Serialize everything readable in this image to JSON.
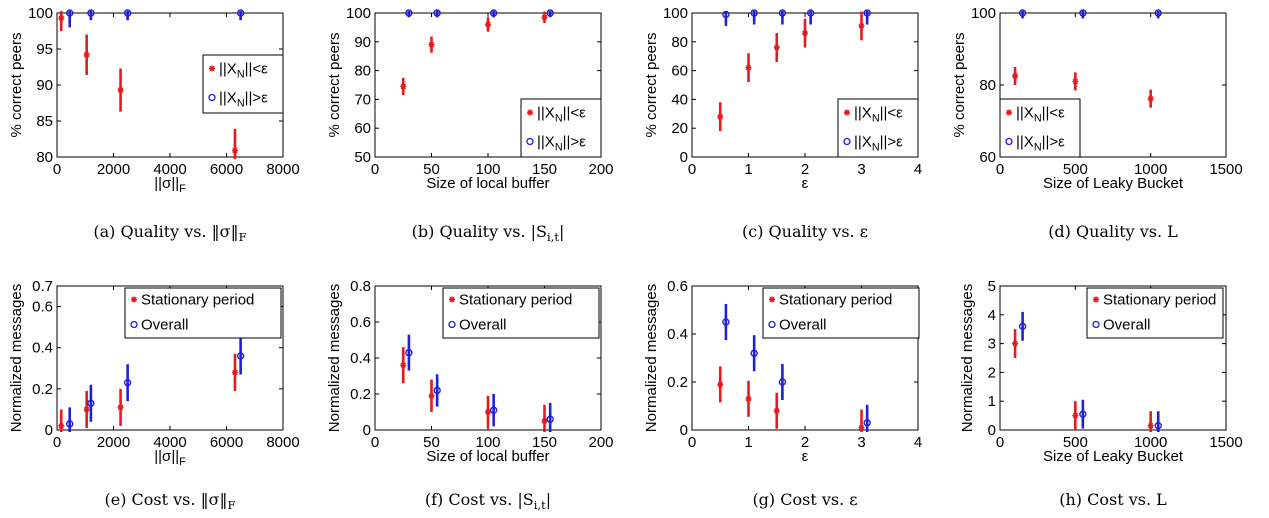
{
  "colors": {
    "series1": "#e41a1c",
    "series2": "#1f1fdf",
    "axis": "#000000"
  },
  "chart_data": [
    {
      "type": "scatter",
      "caption": "(a) Quality vs. ‖σ‖_F",
      "xlabel": "||σ||_F",
      "ylabel": "% correct peers",
      "xlim": [
        0,
        8000
      ],
      "ylim": [
        80,
        100
      ],
      "xticks": [
        0,
        2000,
        4000,
        6000,
        8000
      ],
      "yticks": [
        80,
        85,
        90,
        95,
        100
      ],
      "legend_position": "right",
      "series": [
        {
          "name": "||X_N||<ε",
          "marker": "star",
          "color": "red",
          "x": [
            150,
            1050,
            2250,
            6300
          ],
          "y": [
            99.3,
            94.2,
            89.3,
            80.9
          ],
          "err": [
            1.8,
            2.8,
            3.0,
            3.0
          ]
        },
        {
          "name": "||X_N||>ε",
          "marker": "circle",
          "color": "blue",
          "x": [
            450,
            1200,
            2500,
            6500
          ],
          "y": [
            100,
            100,
            100,
            100
          ],
          "err": [
            2.0,
            1.0,
            1.0,
            1.0
          ]
        }
      ]
    },
    {
      "type": "scatter",
      "caption": "(b) Quality vs. |S_i,t|",
      "xlabel": "Size of local buffer",
      "ylabel": "% correct peers",
      "xlim": [
        0,
        200
      ],
      "ylim": [
        50,
        100
      ],
      "xticks": [
        0,
        50,
        100,
        150,
        200
      ],
      "yticks": [
        50,
        60,
        70,
        80,
        90,
        100
      ],
      "legend_position": "bottom-right",
      "series": [
        {
          "name": "||X_N||<ε",
          "marker": "star",
          "color": "red",
          "x": [
            25,
            50,
            100,
            150
          ],
          "y": [
            74.5,
            89,
            96,
            98.5
          ],
          "err": [
            3.0,
            2.8,
            2.5,
            2.0
          ]
        },
        {
          "name": "||X_N||>ε",
          "marker": "circle",
          "color": "blue",
          "x": [
            30,
            55,
            105,
            155
          ],
          "y": [
            100,
            100,
            100,
            100
          ],
          "err": [
            1.5,
            1.5,
            1.5,
            1.5
          ]
        }
      ]
    },
    {
      "type": "scatter",
      "caption": "(c) Quality vs. ε",
      "xlabel": "ε",
      "ylabel": "% correct peers",
      "xlim": [
        0,
        4
      ],
      "ylim": [
        0,
        100
      ],
      "xticks": [
        0,
        1,
        2,
        3,
        4
      ],
      "yticks": [
        0,
        20,
        40,
        60,
        80,
        100
      ],
      "legend_position": "bottom-right",
      "series": [
        {
          "name": "||X_N||<ε",
          "marker": "star",
          "color": "red",
          "x": [
            0.5,
            1.0,
            1.5,
            2.0,
            3.0
          ],
          "y": [
            28,
            62,
            76,
            86,
            91
          ],
          "err": [
            10,
            10,
            10,
            10,
            10
          ]
        },
        {
          "name": "||X_N||>ε",
          "marker": "circle",
          "color": "blue",
          "x": [
            0.6,
            1.1,
            1.6,
            2.1,
            3.1
          ],
          "y": [
            99,
            100,
            100,
            100,
            100
          ],
          "err": [
            8,
            8,
            8,
            8,
            8
          ]
        }
      ]
    },
    {
      "type": "scatter",
      "caption": "(d) Quality vs. L",
      "xlabel": "Size of Leaky Bucket",
      "ylabel": "% correct peers",
      "xlim": [
        0,
        1500
      ],
      "ylim": [
        60,
        100
      ],
      "xticks": [
        0,
        500,
        1000,
        1500
      ],
      "yticks": [
        60,
        80,
        100
      ],
      "legend_position": "bottom-left",
      "series": [
        {
          "name": "||X_N||<ε",
          "marker": "star",
          "color": "red",
          "x": [
            100,
            500,
            1000
          ],
          "y": [
            82.5,
            81,
            76.2
          ],
          "err": [
            2.5,
            2.5,
            2.5
          ]
        },
        {
          "name": "||X_N||>ε",
          "marker": "circle",
          "color": "blue",
          "x": [
            150,
            550,
            1050
          ],
          "y": [
            100,
            100,
            100
          ],
          "err": [
            1.5,
            1.5,
            1.5
          ]
        }
      ]
    },
    {
      "type": "scatter",
      "caption": "(e) Cost vs. ‖σ‖_F",
      "xlabel": "||σ||_F",
      "ylabel": "Normalized messages",
      "xlim": [
        0,
        8000
      ],
      "ylim": [
        0,
        0.7
      ],
      "xticks": [
        0,
        2000,
        4000,
        6000,
        8000
      ],
      "yticks": [
        0,
        0.2,
        0.4,
        0.6,
        0.7
      ],
      "legend_position": "top-right",
      "series": [
        {
          "name": "Stationary period",
          "marker": "star",
          "color": "red",
          "x": [
            150,
            1050,
            2250,
            6300
          ],
          "y": [
            0.02,
            0.1,
            0.11,
            0.28
          ],
          "err": [
            0.08,
            0.09,
            0.09,
            0.09
          ]
        },
        {
          "name": "Overall",
          "marker": "circle",
          "color": "blue",
          "x": [
            450,
            1200,
            2500,
            6500
          ],
          "y": [
            0.03,
            0.13,
            0.23,
            0.36
          ],
          "err": [
            0.08,
            0.09,
            0.09,
            0.09
          ]
        }
      ]
    },
    {
      "type": "scatter",
      "caption": "(f) Cost vs. |S_i,t|",
      "xlabel": "Size of local buffer",
      "ylabel": "Normalized messages",
      "xlim": [
        0,
        200
      ],
      "ylim": [
        0,
        0.8
      ],
      "xticks": [
        0,
        50,
        100,
        150,
        200
      ],
      "yticks": [
        0,
        0.2,
        0.4,
        0.6,
        0.8
      ],
      "legend_position": "top-right",
      "series": [
        {
          "name": "Stationary period",
          "marker": "star",
          "color": "red",
          "x": [
            25,
            50,
            100,
            150
          ],
          "y": [
            0.36,
            0.19,
            0.1,
            0.05
          ],
          "err": [
            0.1,
            0.09,
            0.09,
            0.09
          ]
        },
        {
          "name": "Overall",
          "marker": "circle",
          "color": "blue",
          "x": [
            30,
            55,
            105,
            155
          ],
          "y": [
            0.43,
            0.22,
            0.11,
            0.06
          ],
          "err": [
            0.1,
            0.09,
            0.09,
            0.09
          ]
        }
      ]
    },
    {
      "type": "scatter",
      "caption": "(g) Cost vs. ε",
      "xlabel": "ε",
      "ylabel": "Normalized messages",
      "xlim": [
        0,
        4
      ],
      "ylim": [
        0,
        0.6
      ],
      "xticks": [
        0,
        1,
        2,
        3,
        4
      ],
      "yticks": [
        0,
        0.2,
        0.4,
        0.6
      ],
      "legend_position": "top-right",
      "series": [
        {
          "name": "Stationary period",
          "marker": "star",
          "color": "red",
          "x": [
            0.5,
            1.0,
            1.5,
            3.0
          ],
          "y": [
            0.19,
            0.13,
            0.08,
            0.01
          ],
          "err": [
            0.075,
            0.075,
            0.075,
            0.075
          ]
        },
        {
          "name": "Overall",
          "marker": "circle",
          "color": "blue",
          "x": [
            0.6,
            1.1,
            1.6,
            3.1
          ],
          "y": [
            0.45,
            0.32,
            0.2,
            0.03
          ],
          "err": [
            0.075,
            0.075,
            0.075,
            0.075
          ]
        }
      ]
    },
    {
      "type": "scatter",
      "caption": "(h) Cost vs. L",
      "xlabel": "Size of Leaky Bucket",
      "ylabel": "Normalized messages",
      "xlim": [
        0,
        1500
      ],
      "ylim": [
        0,
        5
      ],
      "xticks": [
        0,
        500,
        1000,
        1500
      ],
      "yticks": [
        0,
        1,
        2,
        3,
        4,
        5
      ],
      "legend_position": "top-right",
      "series": [
        {
          "name": "Stationary period",
          "marker": "star",
          "color": "red",
          "x": [
            100,
            500,
            1000
          ],
          "y": [
            3.0,
            0.5,
            0.15
          ],
          "err": [
            0.5,
            0.5,
            0.5
          ]
        },
        {
          "name": "Overall",
          "marker": "circle",
          "color": "blue",
          "x": [
            150,
            550,
            1050
          ],
          "y": [
            3.6,
            0.55,
            0.15
          ],
          "err": [
            0.5,
            0.5,
            0.5
          ]
        }
      ]
    }
  ]
}
